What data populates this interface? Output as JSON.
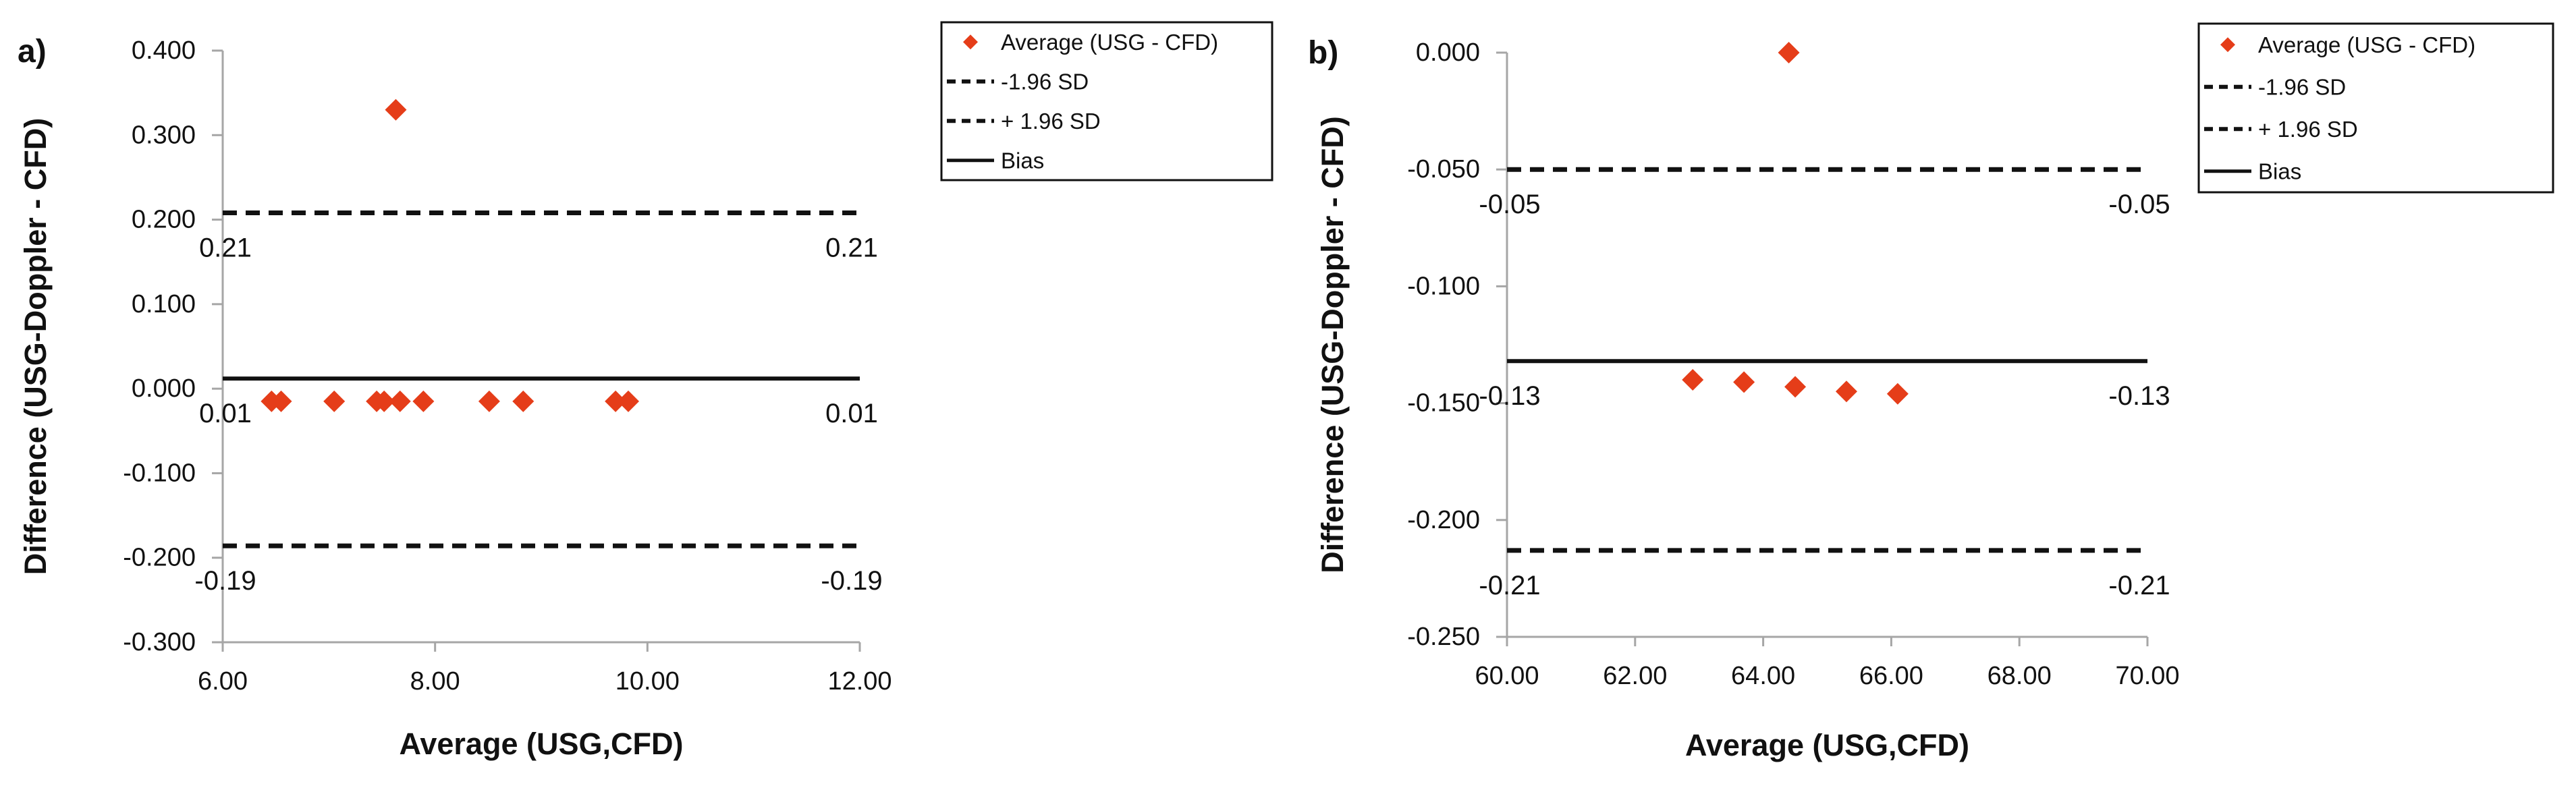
{
  "figure": {
    "background": "#ffffff",
    "marker_color": "#e53d19",
    "reference_line_color": "#111111",
    "axis_color": "#a6a6a6",
    "text_color": "#111111",
    "legend_border_color": "#111111"
  },
  "chart_data": [
    {
      "type": "scatter",
      "panel_label": "a)",
      "xlabel": "Average (USG,CFD)",
      "ylabel": "Difference (USG-Doppler - CFD)",
      "xlim": [
        6.0,
        12.0
      ],
      "ylim": [
        -0.3,
        0.4
      ],
      "grid": false,
      "x_ticks": [
        {
          "value": 6.0,
          "label": "6.00"
        },
        {
          "value": 8.0,
          "label": "8.00"
        },
        {
          "value": 10.0,
          "label": "10.00"
        },
        {
          "value": 12.0,
          "label": "12.00"
        }
      ],
      "y_ticks": [
        {
          "value": 0.4,
          "label": "0.400"
        },
        {
          "value": 0.3,
          "label": "0.300"
        },
        {
          "value": 0.2,
          "label": "0.200"
        },
        {
          "value": 0.1,
          "label": "0.100"
        },
        {
          "value": 0.0,
          "label": "0.000"
        },
        {
          "value": -0.1,
          "label": "-0.100"
        },
        {
          "value": -0.2,
          "label": "-0.200"
        },
        {
          "value": -0.3,
          "label": "-0.300"
        }
      ],
      "series": [
        {
          "name": "Average (USG - CFD)",
          "marker": "diamond",
          "points": [
            [
              6.46,
              -0.015
            ],
            [
              6.55,
              -0.015
            ],
            [
              7.05,
              -0.015
            ],
            [
              7.45,
              -0.015
            ],
            [
              7.52,
              -0.015
            ],
            [
              7.67,
              -0.015
            ],
            [
              7.89,
              -0.015
            ],
            [
              8.51,
              -0.015
            ],
            [
              8.83,
              -0.015
            ],
            [
              9.7,
              -0.015
            ],
            [
              9.82,
              -0.015
            ],
            [
              7.63,
              0.33
            ]
          ]
        }
      ],
      "reference_lines": [
        {
          "name": "+ 1.96 SD",
          "value": 0.208,
          "style": "dashed",
          "annotation": "0.21"
        },
        {
          "name": "Bias",
          "value": 0.012,
          "style": "solid",
          "annotation": "0.01"
        },
        {
          "name": "-1.96 SD",
          "value": -0.186,
          "style": "dashed",
          "annotation": "-0.19"
        }
      ],
      "legend": [
        {
          "label": "Average (USG - CFD)",
          "glyph": "diamond"
        },
        {
          "label": "-1.96 SD",
          "glyph": "dashed"
        },
        {
          "label": "+ 1.96 SD",
          "glyph": "dashed"
        },
        {
          "label": "Bias",
          "glyph": "solid"
        }
      ],
      "legend_position": "outside-top-right"
    },
    {
      "type": "scatter",
      "panel_label": "b)",
      "xlabel": "Average (USG,CFD)",
      "ylabel": "Difference (USG-Doppler - CFD)",
      "xlim": [
        60.0,
        70.0
      ],
      "ylim": [
        -0.25,
        0.0
      ],
      "grid": false,
      "x_ticks": [
        {
          "value": 60.0,
          "label": "60.00"
        },
        {
          "value": 62.0,
          "label": "62.00"
        },
        {
          "value": 64.0,
          "label": "64.00"
        },
        {
          "value": 66.0,
          "label": "66.00"
        },
        {
          "value": 68.0,
          "label": "68.00"
        },
        {
          "value": 70.0,
          "label": "70.00"
        }
      ],
      "y_ticks": [
        {
          "value": 0.0,
          "label": "0.000"
        },
        {
          "value": -0.05,
          "label": "-0.050"
        },
        {
          "value": -0.1,
          "label": "-0.100"
        },
        {
          "value": -0.15,
          "label": "-0.150"
        },
        {
          "value": -0.2,
          "label": "-0.200"
        },
        {
          "value": -0.25,
          "label": "-0.250"
        }
      ],
      "series": [
        {
          "name": "Average (USG - CFD)",
          "marker": "diamond",
          "points": [
            [
              62.9,
              -0.14
            ],
            [
              63.7,
              -0.141
            ],
            [
              64.5,
              -0.143
            ],
            [
              65.3,
              -0.145
            ],
            [
              66.1,
              -0.146
            ],
            [
              64.4,
              0.0
            ]
          ]
        }
      ],
      "reference_lines": [
        {
          "name": "+ 1.96 SD",
          "value": -0.05,
          "style": "dashed",
          "annotation": "-0.05"
        },
        {
          "name": "Bias",
          "value": -0.132,
          "style": "solid",
          "annotation": "-0.13"
        },
        {
          "name": "-1.96 SD",
          "value": -0.213,
          "style": "dashed",
          "annotation": "-0.21"
        }
      ],
      "legend": [
        {
          "label": "Average (USG - CFD)",
          "glyph": "diamond"
        },
        {
          "label": "-1.96 SD",
          "glyph": "dashed"
        },
        {
          "label": "+ 1.96 SD",
          "glyph": "dashed"
        },
        {
          "label": "Bias",
          "glyph": "solid"
        }
      ],
      "legend_position": "outside-top-right"
    }
  ]
}
